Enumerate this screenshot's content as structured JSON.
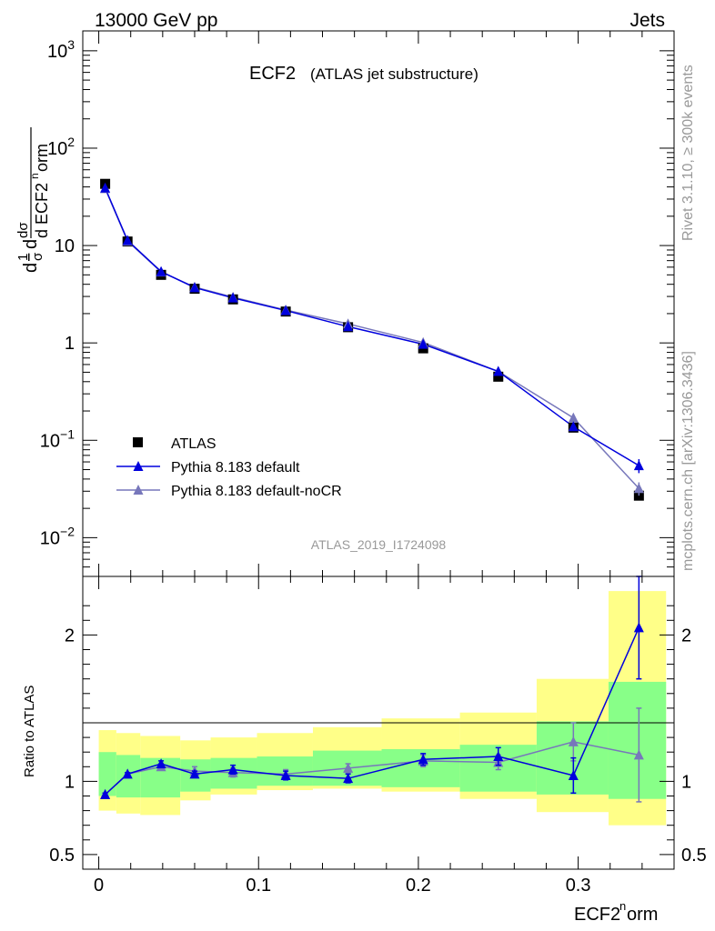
{
  "header": {
    "left": "13000 GeV pp",
    "right": "Jets"
  },
  "side_labels": {
    "rivet": "Rivet 3.1.10, ≥ 300k events",
    "mcplots": "mcplots.cern.ch [arXiv:1306.3436]"
  },
  "colors": {
    "atlas": "#000000",
    "default": "#0000dd",
    "nocr": "#7777bb",
    "band_outer": "#ffff88",
    "band_inner": "#88ff88"
  },
  "chart_data": [
    {
      "type": "line",
      "panel": "main",
      "title": "ECF2",
      "subtitle": "(ATLAS jet substructure)",
      "ylabel": "1/σ dσ/d ECF2norm",
      "yscale": "log",
      "ylim": [
        0.004,
        1600
      ],
      "xlim": [
        -0.01,
        0.36
      ],
      "watermark": "ATLAS_2019_I1724098",
      "yticks": [
        {
          "v": 1000,
          "base": "10",
          "exp": "3"
        },
        {
          "v": 100,
          "base": "10",
          "exp": "2"
        },
        {
          "v": 10,
          "base": "10",
          "exp": ""
        },
        {
          "v": 1,
          "base": "1",
          "exp": ""
        },
        {
          "v": 0.1,
          "base": "10",
          "exp": "−1"
        },
        {
          "v": 0.01,
          "base": "10",
          "exp": "−2"
        }
      ],
      "legend": [
        "ATLAS",
        "Pythia 8.183 default",
        "Pythia 8.183 default-noCR"
      ],
      "series": [
        {
          "name": "ATLAS",
          "x": [
            0.004,
            0.018,
            0.039,
            0.06,
            0.084,
            0.117,
            0.156,
            0.203,
            0.25,
            0.297,
            0.338
          ],
          "values": [
            43,
            11,
            5.0,
            3.6,
            2.8,
            2.1,
            1.45,
            0.88,
            0.45,
            0.135,
            0.027
          ]
        },
        {
          "name": "Pythia 8.183 default",
          "x": [
            0.004,
            0.018,
            0.039,
            0.06,
            0.084,
            0.117,
            0.156,
            0.203,
            0.25,
            0.297,
            0.338
          ],
          "values": [
            39,
            11.3,
            5.4,
            3.7,
            2.9,
            2.15,
            1.47,
            0.97,
            0.51,
            0.138,
            0.055
          ],
          "err": [
            0,
            0,
            0,
            0,
            0,
            0,
            0,
            0,
            0,
            0.008,
            0.009
          ]
        },
        {
          "name": "Pythia 8.183 default-noCR",
          "x": [
            0.004,
            0.018,
            0.039,
            0.06,
            0.084,
            0.117,
            0.156,
            0.203,
            0.25,
            0.297,
            0.338
          ],
          "values": [
            38.5,
            11.1,
            5.35,
            3.75,
            2.95,
            2.18,
            1.57,
            1.01,
            0.51,
            0.17,
            0.032
          ],
          "err": [
            0,
            0,
            0,
            0,
            0,
            0,
            0,
            0,
            0,
            0.012,
            0.005
          ]
        }
      ]
    },
    {
      "type": "line",
      "panel": "ratio",
      "ylabel": "Ratio to ATLAS",
      "xlabel": "ECF2norm",
      "ylim": [
        0.4,
        2.4
      ],
      "xlim": [
        -0.01,
        0.36
      ],
      "yticks": [
        {
          "v": 0.5,
          "label": "0.5"
        },
        {
          "v": 1,
          "label": "1"
        },
        {
          "v": 2,
          "label": "2"
        }
      ],
      "xticks": [
        {
          "v": 0,
          "label": "0"
        },
        {
          "v": 0.1,
          "label": "0.1"
        },
        {
          "v": 0.2,
          "label": "0.2"
        },
        {
          "v": 0.3,
          "label": "0.3"
        }
      ],
      "bins": [
        0,
        0.011,
        0.026,
        0.051,
        0.07,
        0.099,
        0.134,
        0.177,
        0.226,
        0.274,
        0.319,
        0.355
      ],
      "band_outer": [
        [
          0.8,
          1.35
        ],
        [
          0.78,
          1.33
        ],
        [
          0.77,
          1.31
        ],
        [
          0.87,
          1.28
        ],
        [
          0.91,
          1.3
        ],
        [
          0.94,
          1.33
        ],
        [
          0.95,
          1.37
        ],
        [
          0.93,
          1.43
        ],
        [
          0.88,
          1.47
        ],
        [
          0.79,
          1.7
        ],
        [
          0.7,
          2.3
        ]
      ],
      "band_inner": [
        [
          0.9,
          1.2
        ],
        [
          0.89,
          1.18
        ],
        [
          0.89,
          1.16
        ],
        [
          0.93,
          1.15
        ],
        [
          0.95,
          1.16
        ],
        [
          0.97,
          1.17
        ],
        [
          0.97,
          1.21
        ],
        [
          0.96,
          1.22
        ],
        [
          0.93,
          1.25
        ],
        [
          0.91,
          1.41
        ],
        [
          0.88,
          1.68
        ]
      ],
      "series": [
        {
          "name": "Pythia 8.183 default",
          "x": [
            0.004,
            0.018,
            0.039,
            0.06,
            0.084,
            0.117,
            0.156,
            0.203,
            0.25,
            0.297,
            0.338
          ],
          "values": [
            0.91,
            1.05,
            1.12,
            1.05,
            1.08,
            1.04,
            1.02,
            1.15,
            1.17,
            1.04,
            2.05
          ],
          "err": [
            0.01,
            0.01,
            0.02,
            0.02,
            0.03,
            0.03,
            0.03,
            0.04,
            0.06,
            0.12,
            0.35
          ]
        },
        {
          "name": "Pythia 8.183 default-noCR",
          "x": [
            0.004,
            0.018,
            0.039,
            0.06,
            0.084,
            0.117,
            0.156,
            0.203,
            0.25,
            0.297,
            0.338
          ],
          "values": [
            0.91,
            1.05,
            1.1,
            1.07,
            1.06,
            1.05,
            1.09,
            1.14,
            1.13,
            1.27,
            1.18
          ],
          "err": [
            0.01,
            0.01,
            0.02,
            0.03,
            0.03,
            0.03,
            0.03,
            0.04,
            0.05,
            0.13,
            0.32
          ]
        }
      ]
    }
  ]
}
